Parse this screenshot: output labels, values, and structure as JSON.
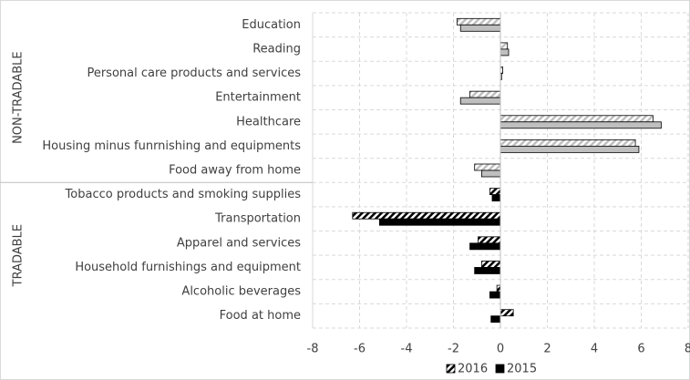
{
  "chart_data": {
    "type": "bar",
    "orientation": "horizontal",
    "series": [
      {
        "name": "2016",
        "pattern": "hatch",
        "color": "#000000"
      },
      {
        "name": "2015",
        "pattern": "solid",
        "color": "#000000"
      }
    ],
    "groups": [
      {
        "label": "NON-TRADABLE",
        "color": "#bfbfbf",
        "categories": [
          "Education",
          "Reading",
          "Personal care products and services",
          "Entertainment",
          "Healthcare",
          "Housing minus funrnishing and equipments",
          "Food away from home"
        ],
        "series": [
          {
            "values": [
              -1.85,
              0.3,
              0.1,
              -1.3,
              6.5,
              5.75,
              -1.1
            ]
          },
          {
            "values": [
              -1.7,
              0.35,
              0.05,
              -1.7,
              6.85,
              5.9,
              -0.8
            ]
          }
        ]
      },
      {
        "label": "TRADABLE",
        "color": "#000000",
        "categories": [
          "Tobacco products and smoking supplies",
          "Transportation",
          "Apparel and services",
          "Household furnishings and equipment",
          "Alcoholic beverages",
          "Food at home"
        ],
        "series": [
          {
            "values": [
              -0.45,
              -6.3,
              -0.95,
              -0.8,
              -0.15,
              0.55
            ]
          },
          {
            "values": [
              -0.35,
              -5.15,
              -1.3,
              -1.1,
              -0.45,
              -0.4
            ]
          }
        ]
      }
    ],
    "xlim": [
      -8,
      8
    ],
    "xticks": [
      -8,
      -6,
      -4,
      -2,
      0,
      2,
      4,
      6,
      8
    ],
    "grid": true
  }
}
